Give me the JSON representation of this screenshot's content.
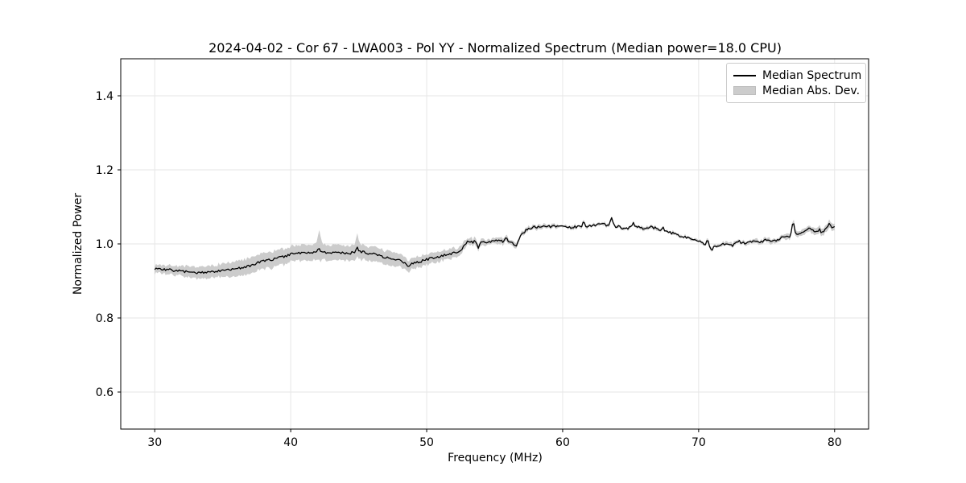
{
  "figure": {
    "title": "2024-04-02 - Cor 67 - LWA003 - Pol YY - Normalized Spectrum (Median power=18.0 CPU)",
    "background_color": "#ffffff"
  },
  "legend": {
    "items": [
      {
        "label": "Median Spectrum",
        "type": "line",
        "color": "#000000"
      },
      {
        "label": "Median Abs. Dev.",
        "type": "patch",
        "color": "#cccccc"
      }
    ]
  },
  "chart_data": {
    "type": "line",
    "title": "2024-04-02 - Cor 67 - LWA003 - Pol YY - Normalized Spectrum (Median power=18.0 CPU)",
    "xlabel": "Frequency (MHz)",
    "ylabel": "Normalized Power",
    "xlim": [
      27.5,
      82.5
    ],
    "ylim": [
      0.5,
      1.5
    ],
    "x_ticks": [
      30,
      40,
      50,
      60,
      70,
      80
    ],
    "y_ticks": [
      0.6,
      0.8,
      1.0,
      1.2,
      1.4
    ],
    "grid": true,
    "grid_color": "#e6e6e6",
    "line_color": "#000000",
    "band_color": "#cccccc",
    "legend_position": "upper right",
    "series": {
      "name": "Median Spectrum",
      "band_name": "Median Abs. Dev.",
      "f_start": 30.0,
      "f_step": 0.5,
      "median": [
        0.934,
        0.931,
        0.93,
        0.928,
        0.926,
        0.924,
        0.923,
        0.923,
        0.924,
        0.926,
        0.928,
        0.93,
        0.933,
        0.936,
        0.94,
        0.948,
        0.953,
        0.957,
        0.962,
        0.966,
        0.972,
        0.974,
        0.976,
        0.977,
        0.979,
        0.978,
        0.977,
        0.976,
        0.975,
        0.976,
        0.98,
        0.977,
        0.973,
        0.969,
        0.964,
        0.959,
        0.955,
        0.948,
        0.946,
        0.952,
        0.958,
        0.962,
        0.966,
        0.971,
        0.976,
        0.983,
        1.003,
        1.006,
        1.002,
        1.006,
        1.008,
        1.008,
        1.006,
        1.0,
        1.026,
        1.042,
        1.046,
        1.046,
        1.047,
        1.048,
        1.048,
        1.044,
        1.046,
        1.048,
        1.049,
        1.051,
        1.052,
        1.05,
        1.047,
        1.042,
        1.044,
        1.046,
        1.042,
        1.046,
        1.04,
        1.036,
        1.03,
        1.024,
        1.019,
        1.013,
        1.006,
        1.0,
        0.993,
        0.996,
        1.0,
        0.996,
        1.006,
        1.001,
        1.008,
        1.004,
        1.011,
        1.007,
        1.015,
        1.02,
        1.024,
        1.028,
        1.042,
        1.034,
        1.03,
        1.044,
        1.048
      ],
      "mad": [
        0.011,
        0.012,
        0.012,
        0.013,
        0.013,
        0.014,
        0.015,
        0.015,
        0.016,
        0.017,
        0.018,
        0.019,
        0.02,
        0.021,
        0.021,
        0.021,
        0.021,
        0.022,
        0.022,
        0.021,
        0.021,
        0.021,
        0.021,
        0.021,
        0.022,
        0.021,
        0.02,
        0.02,
        0.02,
        0.02,
        0.021,
        0.02,
        0.019,
        0.019,
        0.018,
        0.018,
        0.017,
        0.016,
        0.016,
        0.015,
        0.014,
        0.014,
        0.013,
        0.013,
        0.012,
        0.011,
        0.01,
        0.009,
        0.009,
        0.008,
        0.008,
        0.008,
        0.007,
        0.007,
        0.006,
        0.006,
        0.005,
        0.005,
        0.005,
        0.004,
        0.004,
        0.004,
        0.004,
        0.004,
        0.004,
        0.004,
        0.004,
        0.004,
        0.004,
        0.004,
        0.004,
        0.004,
        0.004,
        0.004,
        0.004,
        0.004,
        0.004,
        0.004,
        0.004,
        0.004,
        0.004,
        0.004,
        0.004,
        0.004,
        0.005,
        0.005,
        0.005,
        0.005,
        0.006,
        0.006,
        0.006,
        0.007,
        0.007,
        0.007,
        0.008,
        0.008,
        0.008,
        0.009,
        0.009,
        0.009,
        0.01
      ],
      "spikes": [
        {
          "f": 42.1,
          "dv": 0.009,
          "w": 0.15
        },
        {
          "f": 44.9,
          "dv": 0.013,
          "w": 0.15
        },
        {
          "f": 48.65,
          "dv": -0.014,
          "w": 0.18
        },
        {
          "f": 52.95,
          "dv": 0.008,
          "w": 0.12
        },
        {
          "f": 53.8,
          "dv": -0.013,
          "w": 0.15
        },
        {
          "f": 55.85,
          "dv": 0.014,
          "w": 0.15
        },
        {
          "f": 56.6,
          "dv": -0.01,
          "w": 0.15
        },
        {
          "f": 61.55,
          "dv": 0.014,
          "w": 0.15
        },
        {
          "f": 63.6,
          "dv": 0.022,
          "w": 0.18
        },
        {
          "f": 65.2,
          "dv": 0.013,
          "w": 0.15
        },
        {
          "f": 67.4,
          "dv": 0.009,
          "w": 0.12
        },
        {
          "f": 70.65,
          "dv": 0.02,
          "w": 0.15
        },
        {
          "f": 70.95,
          "dv": -0.01,
          "w": 0.15
        },
        {
          "f": 76.95,
          "dv": 0.04,
          "w": 0.18
        },
        {
          "f": 78.9,
          "dv": 0.012,
          "w": 0.12
        },
        {
          "f": 79.6,
          "dv": 0.013,
          "w": 0.12
        }
      ],
      "band_spikes": [
        {
          "f": 42.1,
          "up": 0.03,
          "down": 0.008,
          "w": 0.22
        },
        {
          "f": 44.9,
          "up": 0.016,
          "down": 0.005,
          "w": 0.22
        }
      ]
    },
    "noise": {
      "seed": 7,
      "line_amp": 0.0035,
      "band_amp": 0.003,
      "sample_step": 0.1
    }
  }
}
